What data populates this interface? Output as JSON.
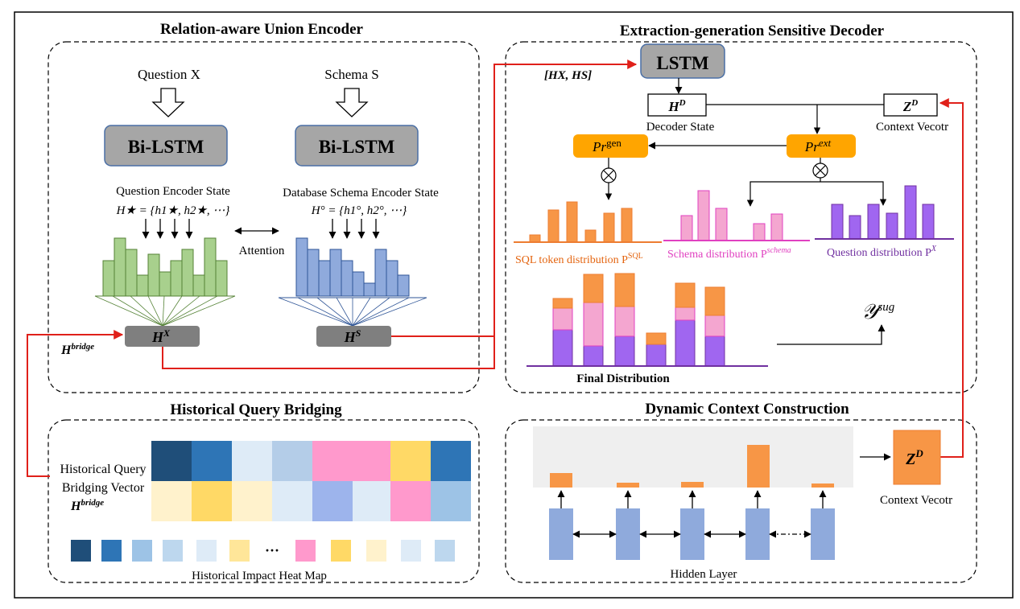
{
  "colors": {
    "green": "#a8d08d",
    "green_edge": "#548235",
    "blue_bar": "#8faadc",
    "blue_edge": "#2f5597",
    "orange": "#f79646",
    "orange_deep": "#ed7d31",
    "pink": "#f4a6d0",
    "pink_edge": "#e040c0",
    "purple": "#a066f0",
    "purple_edge": "#7030a0",
    "red_arrow": "#e0201a",
    "gold": "#ffa500",
    "grey_box": "#7f7f7f",
    "lstm_box": "#a6a6a6",
    "hm_darknavy": "#1f4e79",
    "hm_blue": "#2e75b6",
    "hm_lightblue": "#bdd7ee",
    "hm_paleblue": "#deebf7",
    "hm_pink": "#ff99cc",
    "hm_yellow": "#ffd966",
    "hm_paleyellow": "#fff2cc",
    "hm_periwinkle": "#9dc3e6"
  },
  "encoder": {
    "title": "Relation-aware Union Encoder",
    "question_label": "Question X",
    "schema_label": "Schema S",
    "bilstm_left": "Bi-LSTM",
    "bilstm_right": "Bi-LSTM",
    "question_state_label": "Question Encoder State",
    "question_state_formula": "H★ = {h1★, h2★, ⋯}",
    "schema_state_label": "Database Schema Encoder State",
    "schema_state_formula": "H° = {h1°, h2°, ⋯}",
    "attention_label": "Attention",
    "hx_label": "H",
    "hx_sup": "X",
    "hs_label": "H",
    "hs_sup": "S",
    "hbridge_label": "H",
    "hbridge_sup": "bridge"
  },
  "decoder": {
    "title": "Extraction-generation Sensitive Decoder",
    "lstm_label": "LSTM",
    "input_label": "[HX, HS]",
    "hd_label": "H",
    "hd_sup": "D",
    "decoder_state_label": "Decoder State",
    "zd_label": "Z",
    "zd_sup": "D",
    "context_vector_label": "Context Vecotr",
    "pr_gen": "Pr",
    "pr_gen_sup": "gen",
    "pr_ext": "Pr",
    "pr_ext_sup": "ext",
    "sql_dist_label": "SQL token distribution P",
    "sql_dist_sup": "SQL",
    "schema_dist_label": "Schema distribution P",
    "schema_dist_sup": "schema",
    "question_dist_label": "Question distribution P",
    "question_dist_sup": "X",
    "final_dist_label": "Final Distribution",
    "ysug": "𝒴",
    "ysug_sup": "sug"
  },
  "bridging": {
    "title": "Historical Query Bridging",
    "vector_label_line1": "Historical Query",
    "vector_label_line2": "Bridging Vector",
    "hbridge_label": "H",
    "hbridge_sup": "bridge",
    "heatmap_label": "Historical Impact Heat Map",
    "ellipsis": "···"
  },
  "context": {
    "title": "Dynamic Context Construction",
    "zd_label": "Z",
    "zd_sup": "D",
    "context_vector_label": "Context Vecotr",
    "hidden_layer_label": "Hidden Layer"
  }
}
